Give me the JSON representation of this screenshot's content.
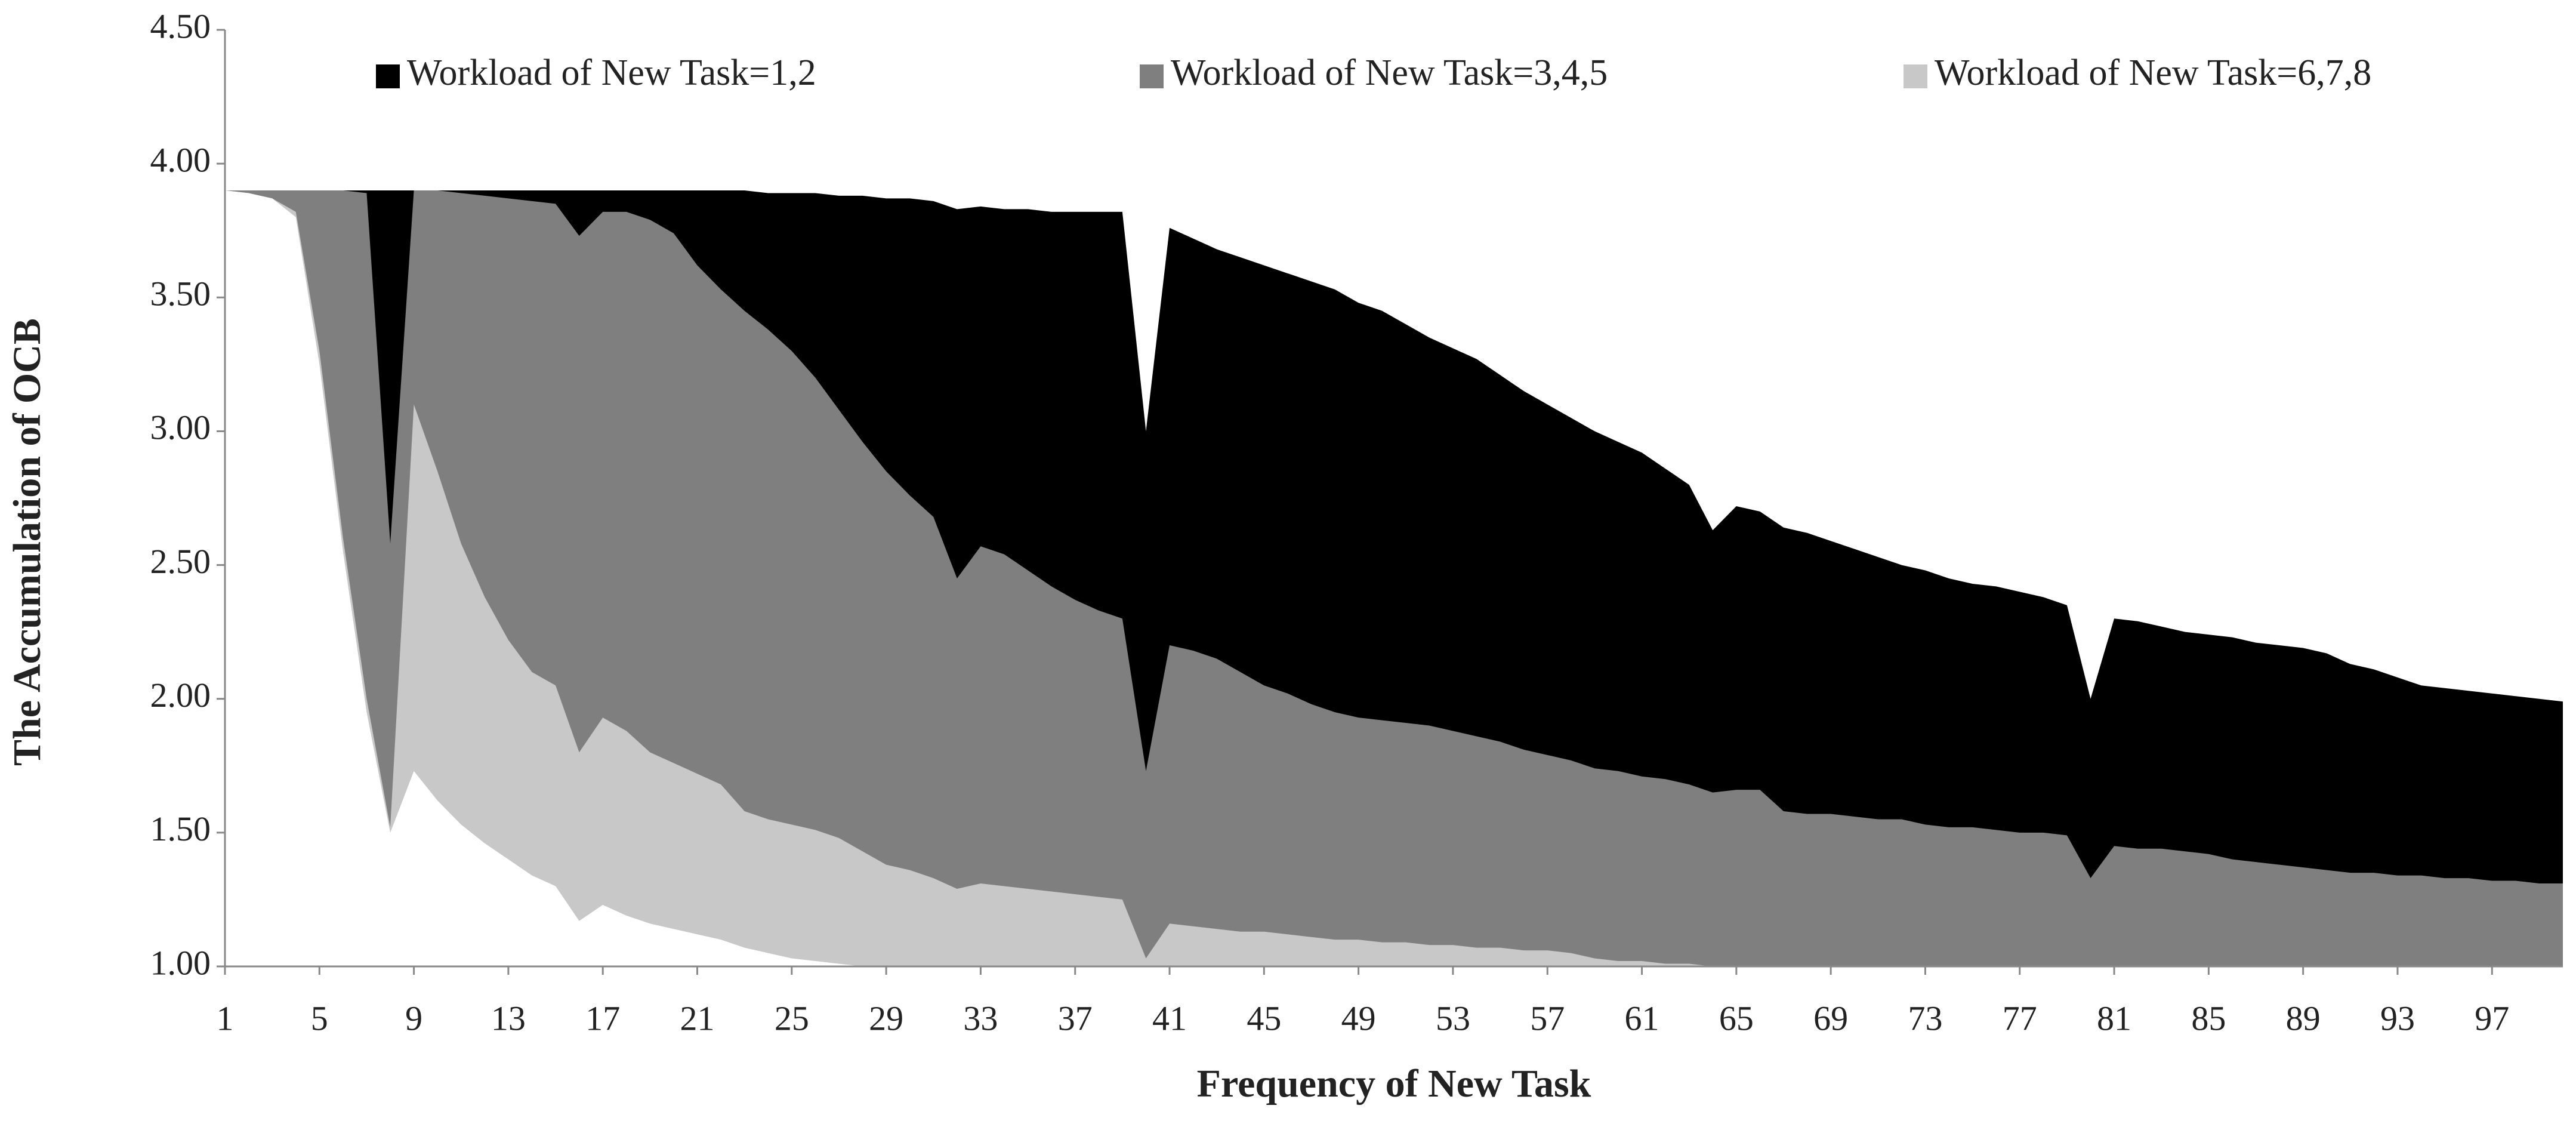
{
  "chart_data": {
    "type": "area",
    "x_label": "Frequency of New Task",
    "y_label": "The Accumulation of OCB",
    "x": [
      1,
      2,
      3,
      4,
      5,
      6,
      7,
      8,
      9,
      10,
      11,
      12,
      13,
      14,
      15,
      16,
      17,
      18,
      19,
      20,
      21,
      22,
      23,
      24,
      25,
      26,
      27,
      28,
      29,
      30,
      31,
      32,
      33,
      34,
      35,
      36,
      37,
      38,
      39,
      40,
      41,
      42,
      43,
      44,
      45,
      46,
      47,
      48,
      49,
      50,
      51,
      52,
      53,
      54,
      55,
      56,
      57,
      58,
      59,
      60,
      61,
      62,
      63,
      64,
      65,
      66,
      67,
      68,
      69,
      70,
      71,
      72,
      73,
      74,
      75,
      76,
      77,
      78,
      79,
      80,
      81,
      82,
      83,
      84,
      85,
      86,
      87,
      88,
      89,
      90,
      91,
      92,
      93,
      94,
      95,
      96,
      97,
      98,
      99,
      100
    ],
    "xlim": [
      1,
      100
    ],
    "xticks": [
      1,
      5,
      9,
      13,
      17,
      21,
      25,
      29,
      33,
      37,
      41,
      45,
      49,
      53,
      57,
      61,
      65,
      69,
      73,
      77,
      81,
      85,
      89,
      93,
      97
    ],
    "ylim": [
      1,
      4.5
    ],
    "yticks": [
      {
        "value": 1,
        "label": "1.00"
      },
      {
        "value": 1.5,
        "label": "1.50"
      },
      {
        "value": 2,
        "label": "2.00"
      },
      {
        "value": 2.5,
        "label": "2.50"
      },
      {
        "value": 3,
        "label": "3.00"
      },
      {
        "value": 3.5,
        "label": "3.50"
      },
      {
        "value": 4,
        "label": "4.00"
      },
      {
        "value": 4.5,
        "label": "4.50"
      }
    ],
    "grid": false,
    "series": [
      {
        "name": "Workload of New Task=1,2",
        "color": "#000000",
        "values": [
          3.9,
          3.9,
          3.9,
          3.9,
          3.9,
          3.9,
          3.9,
          3.9,
          3.9,
          3.9,
          3.9,
          3.9,
          3.9,
          3.9,
          3.9,
          3.9,
          3.9,
          3.9,
          3.9,
          3.9,
          3.9,
          3.9,
          3.9,
          3.89,
          3.89,
          3.89,
          3.88,
          3.88,
          3.87,
          3.87,
          3.86,
          3.83,
          3.84,
          3.83,
          3.83,
          3.82,
          3.82,
          3.82,
          3.82,
          3.0,
          3.76,
          3.72,
          3.68,
          3.65,
          3.62,
          3.59,
          3.56,
          3.53,
          3.48,
          3.45,
          3.4,
          3.35,
          3.31,
          3.27,
          3.21,
          3.15,
          3.1,
          3.05,
          3.0,
          2.96,
          2.92,
          2.86,
          2.8,
          2.63,
          2.72,
          2.7,
          2.64,
          2.62,
          2.59,
          2.56,
          2.53,
          2.5,
          2.48,
          2.45,
          2.43,
          2.42,
          2.4,
          2.38,
          2.35,
          2.0,
          2.3,
          2.29,
          2.27,
          2.25,
          2.24,
          2.23,
          2.21,
          2.2,
          2.19,
          2.17,
          2.13,
          2.11,
          2.08,
          2.05,
          2.04,
          2.03,
          2.02,
          2.01,
          2.0,
          1.99
        ]
      },
      {
        "name": "Workload of New Task=3,4,5",
        "color": "#7f7f7f",
        "values": [
          3.9,
          3.9,
          3.9,
          3.9,
          3.9,
          3.9,
          3.89,
          2.58,
          3.9,
          3.9,
          3.89,
          3.88,
          3.87,
          3.86,
          3.85,
          3.73,
          3.82,
          3.82,
          3.79,
          3.74,
          3.62,
          3.53,
          3.45,
          3.38,
          3.3,
          3.2,
          3.08,
          2.96,
          2.85,
          2.76,
          2.68,
          2.45,
          2.57,
          2.54,
          2.48,
          2.42,
          2.37,
          2.33,
          2.3,
          1.73,
          2.2,
          2.18,
          2.15,
          2.1,
          2.05,
          2.02,
          1.98,
          1.95,
          1.93,
          1.92,
          1.91,
          1.9,
          1.88,
          1.86,
          1.84,
          1.81,
          1.79,
          1.77,
          1.74,
          1.73,
          1.71,
          1.7,
          1.68,
          1.65,
          1.66,
          1.66,
          1.58,
          1.57,
          1.57,
          1.56,
          1.55,
          1.55,
          1.53,
          1.52,
          1.52,
          1.51,
          1.5,
          1.5,
          1.49,
          1.33,
          1.45,
          1.44,
          1.44,
          1.43,
          1.42,
          1.4,
          1.39,
          1.38,
          1.37,
          1.36,
          1.35,
          1.35,
          1.34,
          1.34,
          1.33,
          1.33,
          1.32,
          1.32,
          1.31,
          1.31
        ]
      },
      {
        "name": "Workload of New Task=6,7,8",
        "color": "#c8c8c8",
        "values": [
          3.9,
          3.89,
          3.87,
          3.82,
          3.3,
          2.6,
          2.0,
          1.52,
          3.1,
          2.85,
          2.58,
          2.38,
          2.22,
          2.1,
          2.05,
          1.8,
          1.93,
          1.88,
          1.8,
          1.76,
          1.72,
          1.68,
          1.58,
          1.55,
          1.53,
          1.51,
          1.48,
          1.43,
          1.38,
          1.36,
          1.33,
          1.29,
          1.31,
          1.3,
          1.29,
          1.28,
          1.27,
          1.26,
          1.25,
          1.03,
          1.16,
          1.15,
          1.14,
          1.13,
          1.13,
          1.12,
          1.11,
          1.1,
          1.1,
          1.09,
          1.09,
          1.08,
          1.08,
          1.07,
          1.07,
          1.06,
          1.06,
          1.05,
          1.03,
          1.02,
          1.02,
          1.01,
          1.01,
          1.0,
          1.0,
          1.0,
          1.0,
          1.0,
          1.0,
          1.0,
          1.0,
          1.0,
          1.0,
          1.0,
          1.0,
          1.0,
          1.0,
          1.0,
          1.0,
          1.0,
          1.0,
          1.0,
          1.0,
          1.0,
          1.0,
          1.0,
          1.0,
          1.0,
          1.0,
          1.0,
          1.0,
          1.0,
          1.0,
          1.0,
          1.0,
          1.0,
          1.0,
          1.0,
          1.0,
          1.0
        ]
      },
      {
        "color": "#ffffff",
        "values": [
          3.9,
          3.89,
          3.87,
          3.8,
          3.25,
          2.55,
          1.95,
          1.5,
          1.73,
          1.62,
          1.53,
          1.46,
          1.4,
          1.34,
          1.3,
          1.17,
          1.23,
          1.19,
          1.16,
          1.14,
          1.12,
          1.1,
          1.07,
          1.05,
          1.03,
          1.02,
          1.01,
          1.0,
          1.0,
          1.0,
          1.0,
          1.0,
          1.0,
          1.0,
          1.0,
          1.0,
          1.0,
          1.0,
          1.0,
          1.0,
          1.0,
          1.0,
          1.0,
          1.0,
          1.0,
          1.0,
          1.0,
          1.0,
          1.0,
          1.0,
          1.0,
          1.0,
          1.0,
          1.0,
          1.0,
          1.0,
          1.0,
          1.0,
          1.0,
          1.0,
          1.0,
          1.0,
          1.0,
          1.0,
          1.0,
          1.0,
          1.0,
          1.0,
          1.0,
          1.0,
          1.0,
          1.0,
          1.0,
          1.0,
          1.0,
          1.0,
          1.0,
          1.0,
          1.0,
          1.0,
          1.0,
          1.0,
          1.0,
          1.0,
          1.0,
          1.0,
          1.0,
          1.0,
          1.0,
          1.0,
          1.0,
          1.0,
          1.0,
          1.0,
          1.0,
          1.0,
          1.0,
          1.0,
          1.0,
          1.0
        ]
      }
    ]
  }
}
